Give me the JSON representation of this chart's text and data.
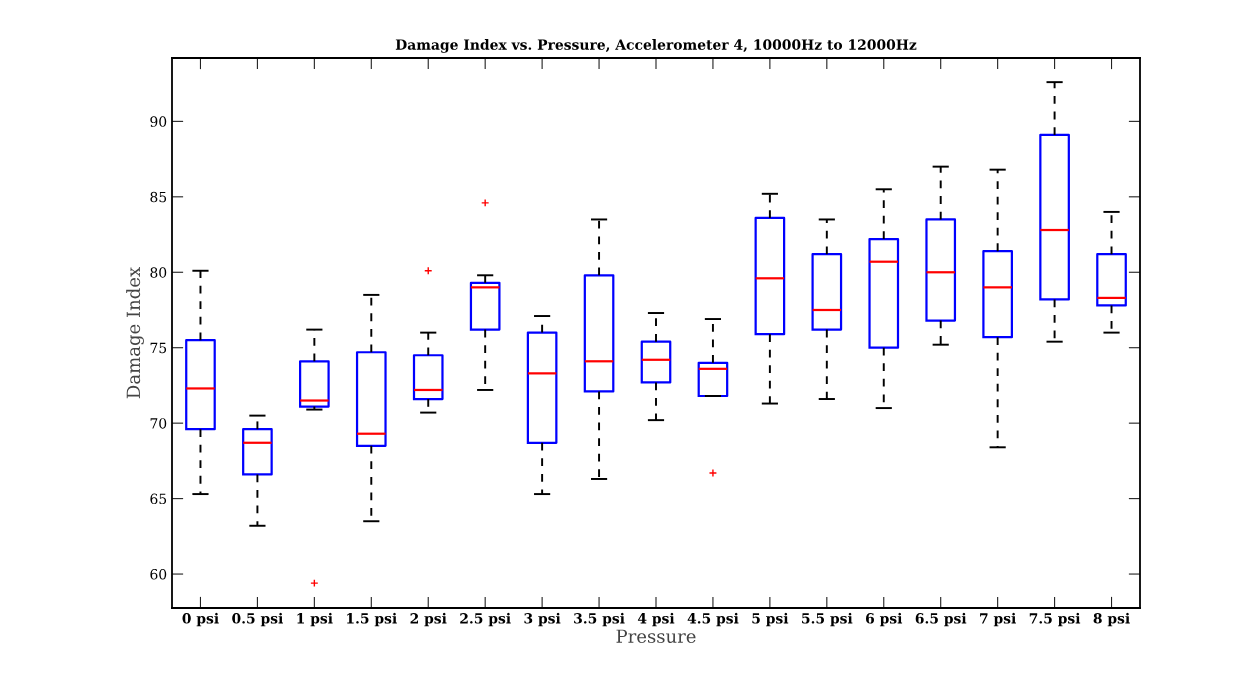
{
  "chart_data": {
    "type": "box",
    "title": "Damage Index vs. Pressure, Accelerometer 4, 10000Hz to 12000Hz",
    "xlabel": "Pressure",
    "ylabel": "Damage Index",
    "categories": [
      "0 psi",
      "0.5 psi",
      "1 psi",
      "1.5 psi",
      "2 psi",
      "2.5 psi",
      "3 psi",
      "3.5 psi",
      "4 psi",
      "4.5 psi",
      "5 psi",
      "5.5 psi",
      "6 psi",
      "6.5 psi",
      "7 psi",
      "7.5 psi",
      "8 psi"
    ],
    "series": [
      {
        "color": "#0000ff",
        "boxes": [
          {
            "low": 65.3,
            "q1": 69.6,
            "median": 72.3,
            "q3": 75.5,
            "high": 80.1
          },
          {
            "low": 63.2,
            "q1": 66.6,
            "median": 68.7,
            "q3": 69.6,
            "high": 70.5
          },
          {
            "low": 70.9,
            "q1": 71.1,
            "median": 71.5,
            "q3": 74.1,
            "high": 76.2,
            "outliers": [
              59.4
            ]
          },
          {
            "low": 63.5,
            "q1": 68.5,
            "median": 69.3,
            "q3": 74.7,
            "high": 78.5
          },
          {
            "low": 70.7,
            "q1": 71.6,
            "median": 72.2,
            "q3": 74.5,
            "high": 76.0,
            "outliers": [
              80.1
            ]
          },
          {
            "low": 72.2,
            "q1": 76.2,
            "median": 79.0,
            "q3": 79.3,
            "high": 79.8,
            "outliers": [
              84.6
            ]
          },
          {
            "low": 65.3,
            "q1": 68.7,
            "median": 73.3,
            "q3": 76.0,
            "high": 77.1
          },
          {
            "low": 66.3,
            "q1": 72.1,
            "median": 74.1,
            "q3": 79.8,
            "high": 83.5
          },
          {
            "low": 70.2,
            "q1": 72.7,
            "median": 74.2,
            "q3": 75.4,
            "high": 77.3
          },
          {
            "low": 71.8,
            "q1": 71.8,
            "median": 73.6,
            "q3": 74.0,
            "high": 76.9,
            "outliers": [
              66.7
            ]
          },
          {
            "low": 71.3,
            "q1": 75.9,
            "median": 79.6,
            "q3": 83.6,
            "high": 85.2
          },
          {
            "low": 71.6,
            "q1": 76.2,
            "median": 77.5,
            "q3": 81.2,
            "high": 83.5
          },
          {
            "low": 71.0,
            "q1": 75.0,
            "median": 80.7,
            "q3": 82.2,
            "high": 85.5
          },
          {
            "low": 75.2,
            "q1": 76.8,
            "median": 80.0,
            "q3": 83.5,
            "high": 87.0
          },
          {
            "low": 68.4,
            "q1": 75.7,
            "median": 79.0,
            "q3": 81.4,
            "high": 86.8
          },
          {
            "low": 75.4,
            "q1": 78.2,
            "median": 82.8,
            "q3": 89.1,
            "high": 92.6
          },
          {
            "low": 76.0,
            "q1": 77.8,
            "median": 78.3,
            "q3": 81.2,
            "high": 84.0
          }
        ]
      }
    ],
    "ylim": [
      57.75,
      94.2
    ],
    "yticks": [
      60,
      65,
      70,
      75,
      80,
      85,
      90
    ]
  }
}
